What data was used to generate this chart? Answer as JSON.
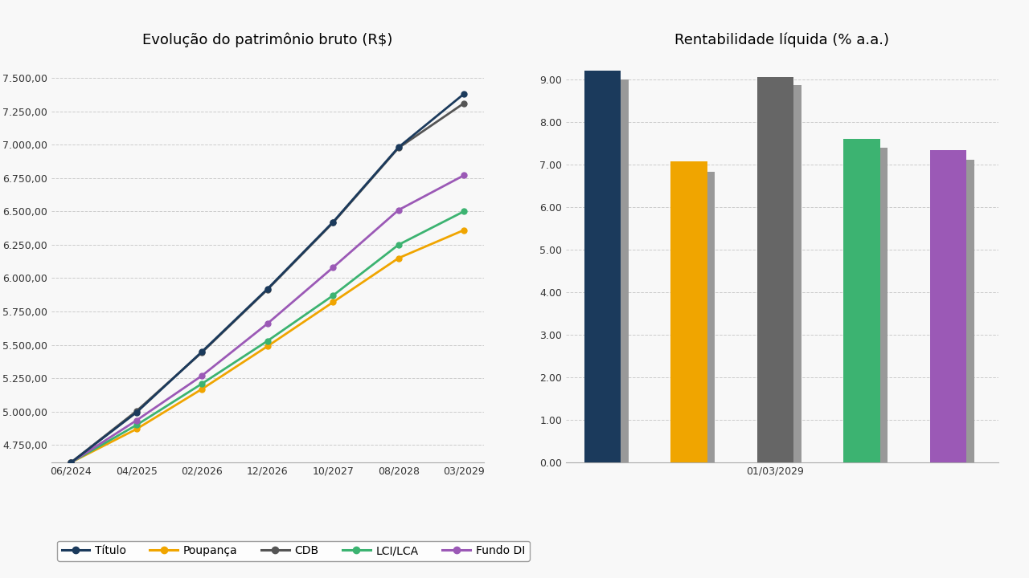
{
  "line_title": "Evolução do patrimônio bruto (R$)",
  "bar_title": "Rentabilidade líquida (% a.a.)",
  "x_labels": [
    "06/2024",
    "04/2025",
    "02/2026",
    "12/2026",
    "10/2027",
    "08/2028",
    "03/2029"
  ],
  "series_order": [
    "Título",
    "CDB",
    "Fundo DI",
    "LCI/LCA",
    "Poupança"
  ],
  "series": {
    "Título": [
      4620,
      4995,
      5450,
      5920,
      6420,
      6980,
      7380
    ],
    "Poupança": [
      4620,
      4870,
      5170,
      5490,
      5820,
      6150,
      6360
    ],
    "CDB": [
      4620,
      5005,
      5445,
      5915,
      6415,
      6975,
      7310
    ],
    "LCI/LCA": [
      4620,
      4900,
      5210,
      5530,
      5870,
      6250,
      6500
    ],
    "Fundo DI": [
      4620,
      4935,
      5270,
      5660,
      6080,
      6510,
      6770
    ]
  },
  "line_colors": {
    "Título": "#1b3a5c",
    "Poupança": "#f0a500",
    "CDB": "#555555",
    "LCI/LCA": "#3cb371",
    "Fundo DI": "#9b59b6"
  },
  "bar_categories": [
    "Título",
    "Poupança",
    "CDB",
    "LCI/LCA",
    "Fundo DI"
  ],
  "bar_values_main": [
    9.19,
    7.07,
    9.05,
    7.59,
    7.33
  ],
  "bar_values_shadow": [
    9.0,
    6.83,
    8.85,
    7.39,
    7.1
  ],
  "bar_colors_main": [
    "#1b3a5c",
    "#f0a500",
    "#666666",
    "#3cb371",
    "#9b59b6"
  ],
  "bar_color_shadow": "#999999",
  "bar_xlabel": "01/03/2029",
  "line_ylim": [
    4620,
    7650
  ],
  "line_yticks": [
    4750,
    5000,
    5250,
    5500,
    5750,
    6000,
    6250,
    6500,
    6750,
    7000,
    7250,
    7500
  ],
  "bar_ylim": [
    0,
    9.5
  ],
  "bar_yticks": [
    0.0,
    1.0,
    2.0,
    3.0,
    4.0,
    5.0,
    6.0,
    7.0,
    8.0,
    9.0
  ],
  "background_color": "#f8f8f8",
  "legend_labels": [
    "Título",
    "Poupança",
    "CDB",
    "LCI/LCA",
    "Fundo DI"
  ]
}
